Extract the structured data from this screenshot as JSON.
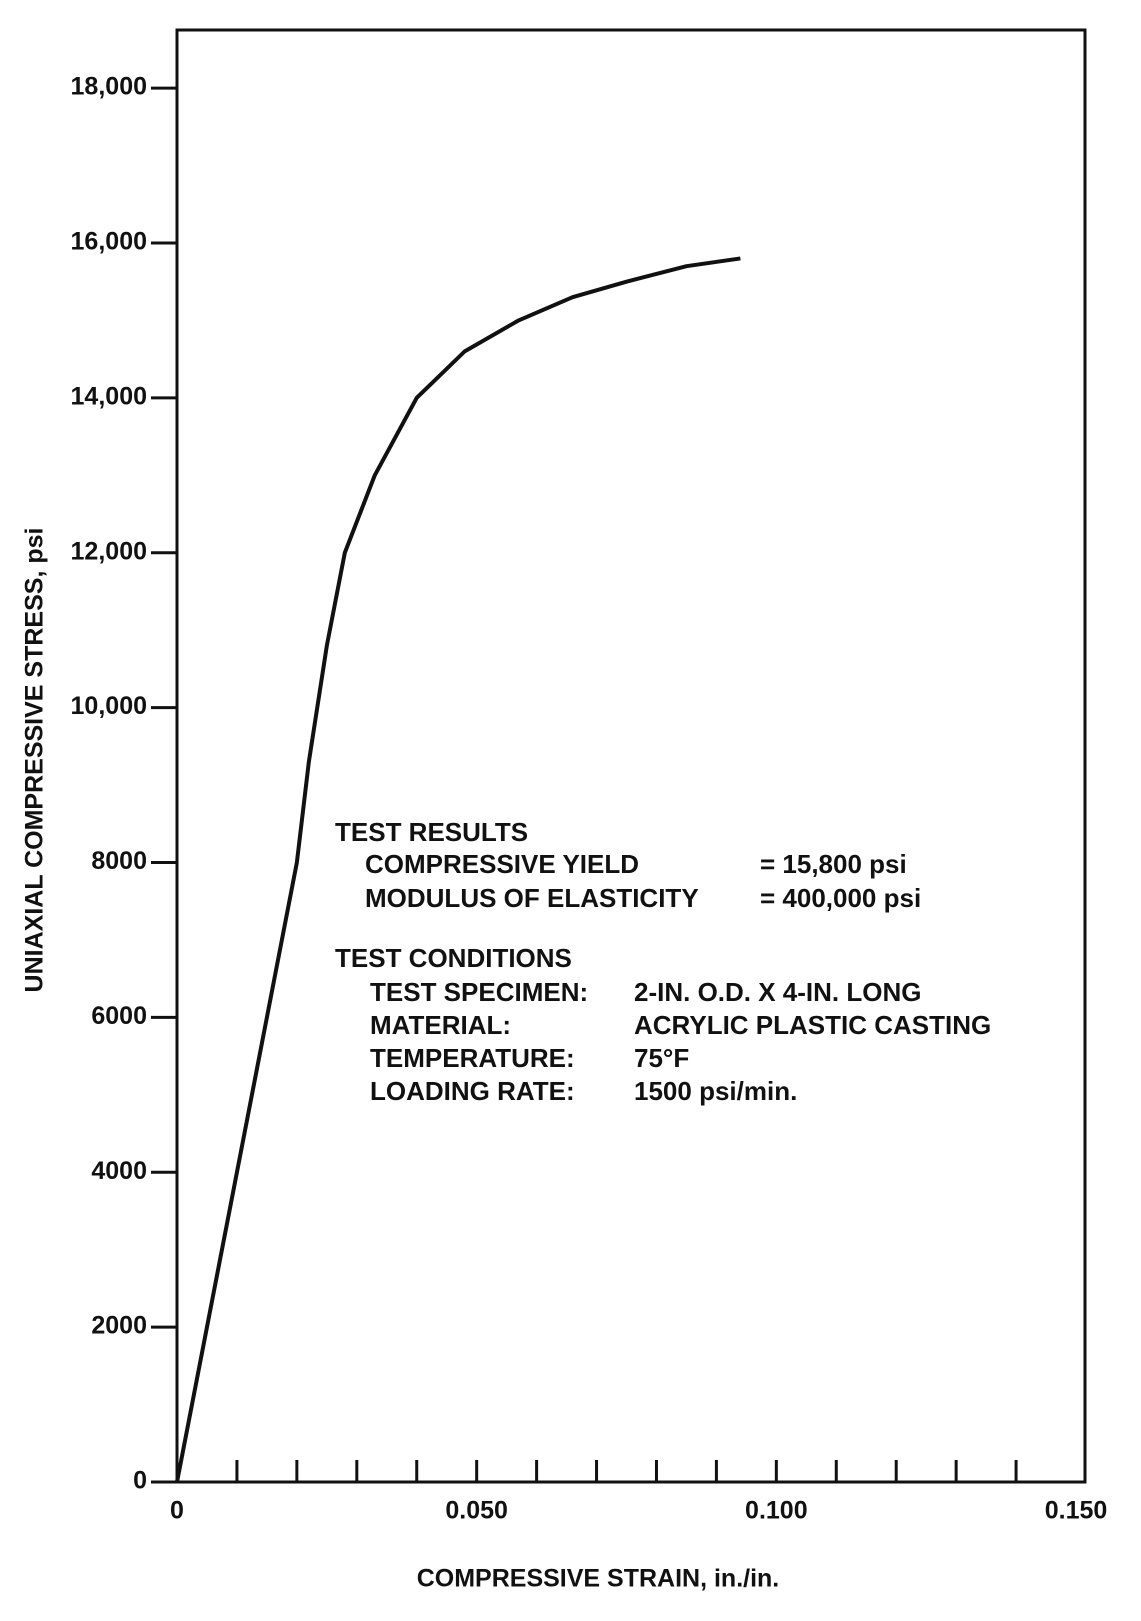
{
  "chart_data": {
    "type": "line",
    "x_label": "COMPRESSIVE STRAIN, in./in.",
    "y_label": "UNIAXIAL COMPRESSIVE STRESS, psi",
    "x": [
      0,
      0.01,
      0.02,
      0.022,
      0.025,
      0.028,
      0.033,
      0.04,
      0.048,
      0.057,
      0.066,
      0.075,
      0.085,
      0.094
    ],
    "series": [
      {
        "color": "#111111",
        "values": [
          0,
          4000,
          8000,
          9300,
          10800,
          12000,
          13000,
          14000,
          14600,
          15000,
          15300,
          15500,
          15700,
          15800
        ]
      }
    ],
    "xlim": [
      0,
      0.1515
    ],
    "ylim": [
      0,
      18750
    ],
    "xticks": [
      0,
      {
        "value": 0.05,
        "label": "0.050"
      },
      {
        "value": 0.1,
        "label": "0.100"
      },
      {
        "value": 0.15,
        "label": "0.150"
      }
    ],
    "xminor_ticks": [
      0.01,
      0.02,
      0.03,
      0.04,
      0.05,
      0.06,
      0.07,
      0.08,
      0.09,
      0.1,
      0.11,
      0.12,
      0.13,
      0.14
    ],
    "yticks": [
      0,
      2000,
      4000,
      6000,
      8000,
      {
        "value": 10000,
        "label": "10,000"
      },
      {
        "value": 12000,
        "label": "12,000"
      },
      {
        "value": 14000,
        "label": "14,000"
      },
      {
        "value": 16000,
        "label": "16,000"
      },
      {
        "value": 18000,
        "label": "18,000"
      }
    ],
    "annotations": {
      "test_results": {
        "heading": "TEST RESULTS",
        "items": [
          {
            "label": "COMPRESSIVE YIELD",
            "value": "= 15,800 psi"
          },
          {
            "label": "MODULUS OF ELASTICITY",
            "value": "= 400,000 psi"
          }
        ]
      },
      "test_conditions": {
        "heading": "TEST CONDITIONS",
        "items": [
          {
            "label": "TEST SPECIMEN:",
            "value": "2-IN. O.D. X 4-IN. LONG"
          },
          {
            "label": "MATERIAL:",
            "value": "ACRYLIC PLASTIC CASTING"
          },
          {
            "label": "TEMPERATURE:",
            "value": "75°F"
          },
          {
            "label": "LOADING RATE:",
            "value": "1500 psi/min."
          }
        ]
      }
    }
  }
}
